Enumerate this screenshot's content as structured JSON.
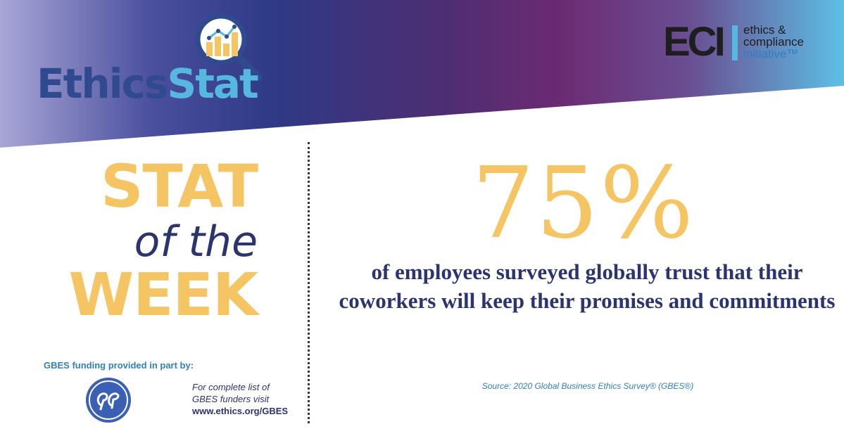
{
  "brand": {
    "ethics_part": "Ethics",
    "stat_part": "Stat",
    "icon": "magnifier-chart-icon"
  },
  "eci": {
    "mark": "ECI",
    "line1": "ethics &",
    "line2": "compliance",
    "line3": "initiative™"
  },
  "stat_title": {
    "line1": "STAT",
    "line2": "of the",
    "line3": "WEEK"
  },
  "funding": {
    "label": "GBES funding provided in part by:",
    "sponsor_icon": "ge-logo-icon",
    "note_line1": "For complete list of",
    "note_line2": "GBES funders visit",
    "url": "www.ethics.org/GBES"
  },
  "stat": {
    "value": "75%",
    "description": "of employees surveyed globally trust that their  coworkers will keep their promises and commitments",
    "source": "Source: 2020 Global Business Ethics Survey® (GBES®)"
  },
  "colors": {
    "gold": "#f4c562",
    "navy": "#2b3470",
    "sky": "#56b8e0",
    "purple": "#6b2a72"
  }
}
